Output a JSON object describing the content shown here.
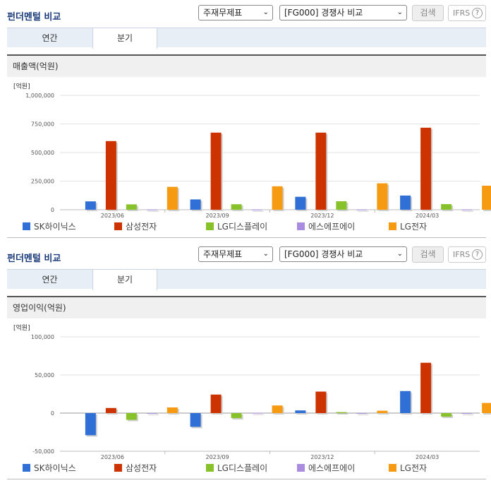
{
  "panels": [
    {
      "title": "펀더멘털 비교",
      "select1": "주재무제표",
      "select2": "[FG000] 경쟁사 비교",
      "search_label": "검색",
      "ifrs_label": "IFRS",
      "help_glyph": "?",
      "tabs": [
        "연간",
        "분기"
      ],
      "active_tab": 1,
      "chart_title": "매출액(억원)"
    },
    {
      "title": "펀더멘털 비교",
      "select1": "주재무제표",
      "select2": "[FG000] 경쟁사 비교",
      "search_label": "검색",
      "ifrs_label": "IFRS",
      "help_glyph": "?",
      "tabs": [
        "연간",
        "분기"
      ],
      "active_tab": 1,
      "chart_title": "영업이익(억원)"
    }
  ],
  "chart_data": [
    {
      "type": "bar",
      "title": "매출액(억원)",
      "unit_label": "[억원]",
      "categories": [
        "2023/06",
        "2023/09",
        "2023/12",
        "2024/03"
      ],
      "ylim": [
        0,
        1000000
      ],
      "yticks": [
        0,
        250000,
        500000,
        750000,
        1000000
      ],
      "ytick_labels": [
        "0",
        "250,000",
        "500,000",
        "750,000",
        "1,000,000"
      ],
      "legend_position": "bottom",
      "series": [
        {
          "name": "SK하이닉스",
          "color": "#2f6fd6",
          "values": [
            73000,
            90000,
            113000,
            124000
          ]
        },
        {
          "name": "삼성전자",
          "color": "#cc3300",
          "values": [
            600000,
            674000,
            674000,
            717000
          ]
        },
        {
          "name": "LG디스플레이",
          "color": "#88c22a",
          "values": [
            47000,
            48000,
            74000,
            49000
          ]
        },
        {
          "name": "에스에프에이",
          "color": "#a98be0",
          "values": [
            1500,
            1500,
            1500,
            1500
          ]
        },
        {
          "name": "LG전자",
          "color": "#f59a11",
          "values": [
            200000,
            205000,
            231000,
            210000
          ]
        }
      ]
    },
    {
      "type": "bar",
      "title": "영업이익(억원)",
      "unit_label": "[억원]",
      "categories": [
        "2023/06",
        "2023/09",
        "2023/12",
        "2024/03"
      ],
      "ylim": [
        -50000,
        100000
      ],
      "yticks": [
        -50000,
        0,
        50000,
        100000
      ],
      "ytick_labels": [
        "-50,000",
        "0",
        "50,000",
        "100,000"
      ],
      "legend_position": "bottom",
      "series": [
        {
          "name": "SK하이닉스",
          "color": "#2f6fd6",
          "values": [
            -29000,
            -18000,
            3500,
            28900
          ]
        },
        {
          "name": "삼성전자",
          "color": "#cc3300",
          "values": [
            6700,
            24300,
            28200,
            66000
          ]
        },
        {
          "name": "LG디스플레이",
          "color": "#88c22a",
          "values": [
            -8800,
            -6600,
            1300,
            -4700
          ]
        },
        {
          "name": "에스에프에이",
          "color": "#a98be0",
          "values": [
            -600,
            300,
            -300,
            -800
          ]
        },
        {
          "name": "LG전자",
          "color": "#f59a11",
          "values": [
            7400,
            10000,
            3100,
            13300
          ]
        }
      ]
    }
  ]
}
